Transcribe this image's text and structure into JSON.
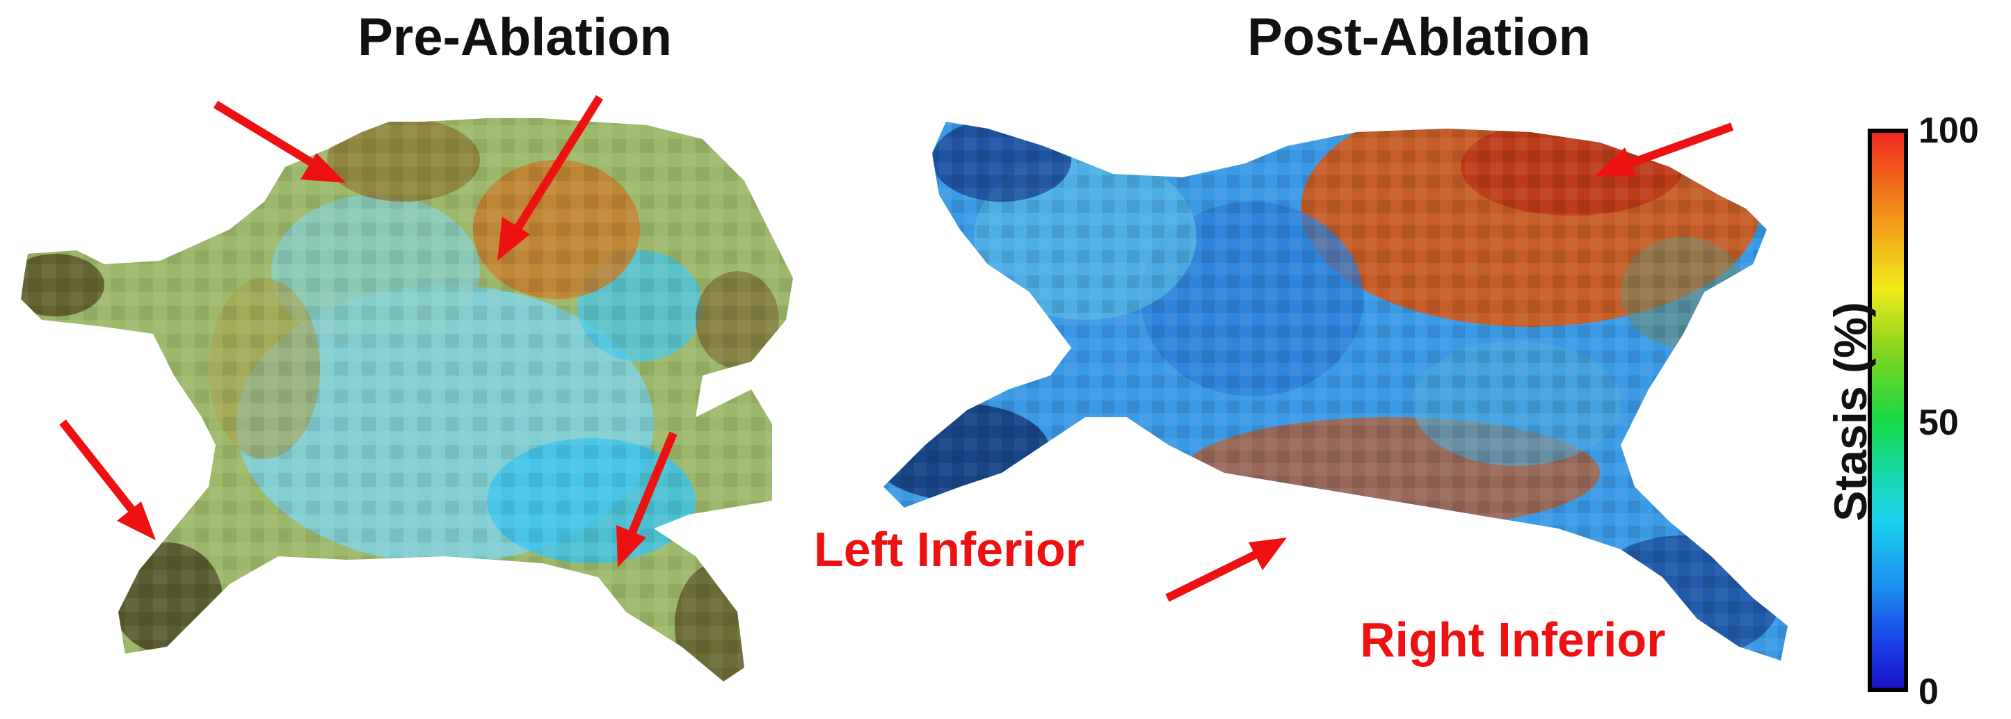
{
  "panels": {
    "pre": {
      "title": "Pre-Ablation"
    },
    "post": {
      "title": "Post-Ablation"
    }
  },
  "labels": {
    "left_inferior": "Left Inferior",
    "right_inferior": "Right Inferior"
  },
  "colorbar": {
    "label": "Stasis (%)",
    "ticks": [
      "100",
      "50",
      "0"
    ],
    "colors": [
      "#ee2a1e",
      "#f39a1b",
      "#f2ea1a",
      "#7ed320",
      "#16d946",
      "#18d9b0",
      "#1bd0ee",
      "#1b8ef0",
      "#1a3fe6",
      "#1a14c8"
    ]
  },
  "arrow_color": "#ee1111"
}
